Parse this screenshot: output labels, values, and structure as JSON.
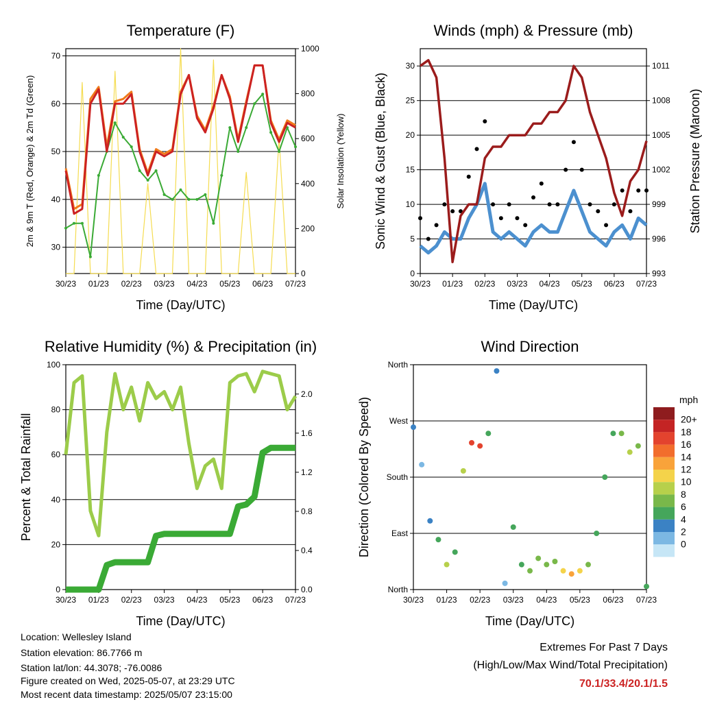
{
  "colors": {
    "temp_2m": "#cc2222",
    "temp_9m": "#f07a1a",
    "dewpoint": "#3aaa35",
    "solar": "#f5dc50",
    "wind": "#4c90cf",
    "gust": "#000000",
    "pressure": "#9b1c1c",
    "rh": "#9ccc4a",
    "rain": "#3aaa35",
    "extremes": "#cc2222"
  },
  "x_ticks": [
    "30/23",
    "01/23",
    "02/23",
    "03/23",
    "04/23",
    "05/23",
    "06/23",
    "07/23"
  ],
  "chart_data": [
    {
      "id": "temperature",
      "type": "line",
      "title": "Temperature (F)",
      "xlabel": "Time (Day/UTC)",
      "ylabel": "2m & 9m T (Red, Orange) & 2m Td (Green)",
      "y2label": "Solar Insolation (Yellow)",
      "ylim": [
        24.5,
        71.5
      ],
      "y2lim": [
        0,
        1000
      ],
      "yticks": [
        30,
        40,
        50,
        60,
        70
      ],
      "y2ticks": [
        0,
        200,
        400,
        600,
        800,
        1000
      ],
      "grid": true,
      "x": [
        0,
        0.25,
        0.5,
        0.75,
        1,
        1.25,
        1.5,
        1.75,
        2,
        2.25,
        2.5,
        2.75,
        3,
        3.25,
        3.5,
        3.75,
        4,
        4.25,
        4.5,
        4.75,
        5,
        5.25,
        5.5,
        5.75,
        6,
        6.25,
        6.5,
        6.75,
        7
      ],
      "series": [
        {
          "key": "temp_2m",
          "values": [
            46,
            37,
            38,
            60,
            63,
            50,
            60,
            60,
            62,
            50,
            45,
            50,
            49,
            50,
            62,
            66,
            57,
            54,
            59,
            66,
            61,
            52,
            60,
            68,
            68,
            56,
            52,
            56,
            55
          ]
        },
        {
          "key": "temp_9m",
          "values": [
            46.5,
            38,
            39,
            61,
            63.5,
            51,
            60.5,
            61,
            62.5,
            50.5,
            45.5,
            50.5,
            49.5,
            50.5,
            62.5,
            66,
            57.5,
            54.5,
            59.5,
            66,
            61.5,
            52.5,
            60.5,
            68,
            68,
            56.5,
            52.5,
            56.5,
            55.5
          ]
        },
        {
          "key": "dewpoint",
          "values": [
            34,
            35,
            35,
            28,
            45,
            50,
            56,
            53,
            51,
            46,
            44,
            46,
            41,
            40,
            42,
            40,
            40,
            41,
            35,
            45,
            55,
            50,
            55,
            60,
            62,
            54,
            50,
            55,
            51
          ]
        },
        {
          "key": "solar",
          "axis": "y2",
          "values": [
            0,
            0,
            850,
            0,
            0,
            0,
            900,
            0,
            0,
            0,
            400,
            0,
            0,
            0,
            1000,
            0,
            0,
            0,
            950,
            0,
            0,
            0,
            450,
            0,
            0,
            0,
            600,
            0,
            0
          ]
        }
      ]
    },
    {
      "id": "winds",
      "type": "scatter",
      "title": "Winds (mph) & Pressure (mb)",
      "xlabel": "Time (Day/UTC)",
      "ylabel": "Sonic Wind & Gust (Blue, Black)",
      "y2label": "Station Pressure (Maroon)",
      "ylim": [
        0,
        32.5
      ],
      "y2lim": [
        993,
        1012.5
      ],
      "yticks": [
        0,
        5,
        10,
        15,
        20,
        25,
        30
      ],
      "y2ticks": [
        993,
        996,
        999,
        1002,
        1005,
        1008,
        1011
      ],
      "grid": true,
      "x": [
        0,
        0.25,
        0.5,
        0.75,
        1,
        1.25,
        1.5,
        1.75,
        2,
        2.25,
        2.5,
        2.75,
        3,
        3.25,
        3.5,
        3.75,
        4,
        4.25,
        4.5,
        4.75,
        5,
        5.25,
        5.5,
        5.75,
        6,
        6.25,
        6.5,
        6.75,
        7
      ],
      "series": [
        {
          "key": "wind",
          "values": [
            4,
            3,
            4,
            6,
            5,
            5,
            8,
            10,
            13,
            6,
            5,
            6,
            5,
            4,
            6,
            7,
            6,
            6,
            9,
            12,
            9,
            6,
            5,
            4,
            6,
            7,
            5,
            8,
            7
          ]
        },
        {
          "key": "gust",
          "values": [
            8,
            5,
            7,
            10,
            9,
            9,
            14,
            18,
            22,
            10,
            8,
            10,
            8,
            7,
            11,
            13,
            10,
            10,
            15,
            19,
            15,
            10,
            9,
            7,
            10,
            12,
            9,
            12,
            12
          ]
        },
        {
          "key": "pressure",
          "axis": "y2",
          "values": [
            1011,
            1011.5,
            1010,
            1003,
            994,
            998,
            999,
            999,
            1003,
            1004,
            1004,
            1005,
            1005,
            1005,
            1006,
            1006,
            1007,
            1007,
            1008,
            1011,
            1010,
            1007,
            1005,
            1003,
            1000,
            998,
            1001,
            1002,
            1004.5
          ]
        }
      ]
    },
    {
      "id": "humidity",
      "type": "line",
      "title": "Relative Humidity (%) & Precipitation (in)",
      "xlabel": "Time (Day/UTC)",
      "ylabel": "Percent & Total Rainfall",
      "ylim": [
        0,
        100
      ],
      "y2lim": [
        0,
        2.3
      ],
      "yticks": [
        0,
        20,
        40,
        60,
        80,
        100
      ],
      "y2ticks": [
        0.0,
        0.4,
        0.8,
        1.2,
        1.6,
        2.0
      ],
      "y2tick_labels": [
        "0.0",
        "0.4",
        "0.8",
        "1.2",
        "1.6",
        "2.0"
      ],
      "grid": true,
      "x": [
        0,
        0.25,
        0.5,
        0.75,
        1,
        1.25,
        1.5,
        1.75,
        2,
        2.25,
        2.5,
        2.75,
        3,
        3.25,
        3.5,
        3.75,
        4,
        4.25,
        4.5,
        4.75,
        5,
        5.25,
        5.5,
        5.75,
        6,
        6.25,
        6.5,
        6.75,
        7
      ],
      "series": [
        {
          "key": "rh",
          "values": [
            60,
            92,
            95,
            35,
            24,
            70,
            96,
            80,
            90,
            75,
            92,
            85,
            88,
            80,
            90,
            65,
            45,
            55,
            58,
            45,
            92,
            95,
            96,
            88,
            97,
            96,
            95,
            80,
            86
          ]
        },
        {
          "key": "rain",
          "axis": "y2",
          "values": [
            0,
            0,
            0,
            0,
            0,
            0.25,
            0.28,
            0.28,
            0.28,
            0.28,
            0.28,
            0.55,
            0.57,
            0.57,
            0.57,
            0.57,
            0.57,
            0.57,
            0.57,
            0.57,
            0.57,
            0.85,
            0.87,
            0.95,
            1.4,
            1.45,
            1.45,
            1.45,
            1.45
          ]
        }
      ]
    },
    {
      "id": "direction",
      "type": "scatter",
      "title": "Wind Direction",
      "xlabel": "Time (Day/UTC)",
      "ylabel": "Direction (Colored By Speed)",
      "ylim": [
        0,
        360
      ],
      "yticks": [
        0,
        90,
        180,
        270,
        360
      ],
      "ytick_labels": [
        "North",
        "East",
        "South",
        "West",
        "North"
      ],
      "grid": true,
      "x": [
        0,
        0.25,
        0.5,
        0.75,
        1,
        1.25,
        1.5,
        1.75,
        2,
        2.25,
        2.5,
        2.75,
        3,
        3.25,
        3.5,
        3.75,
        4,
        4.25,
        4.5,
        4.75,
        5,
        5.25,
        5.5,
        5.75,
        6,
        6.25,
        6.5,
        6.75,
        7
      ],
      "values": [
        260,
        200,
        110,
        80,
        40,
        60,
        190,
        235,
        230,
        250,
        350,
        10,
        100,
        40,
        30,
        50,
        40,
        45,
        30,
        25,
        30,
        40,
        90,
        180,
        250,
        250,
        220,
        230,
        5
      ],
      "speeds": [
        3,
        2,
        4,
        5,
        9,
        6,
        10,
        18,
        17,
        5,
        3,
        2,
        5,
        6,
        8,
        7,
        7,
        8,
        12,
        14,
        11,
        7,
        6,
        5,
        5,
        8,
        10,
        7,
        5
      ],
      "colorbar": {
        "unit": "mph",
        "labels": [
          "20+",
          "18",
          "16",
          "14",
          "12",
          "10",
          "8",
          "6",
          "4",
          "2",
          "0"
        ],
        "colors": [
          "#8e1c1e",
          "#c42424",
          "#e3432e",
          "#f26d2c",
          "#f9a33a",
          "#f4d34a",
          "#b7d04b",
          "#79b84a",
          "#45a65b",
          "#3b82c4",
          "#7cb8e3",
          "#c6e6f6"
        ]
      }
    }
  ],
  "info": {
    "location": "Location: Wellesley Island",
    "elevation": "Station elevation: 86.7766 m",
    "latlon": "Station lat/lon: 44.3078; -76.0086",
    "created": "Figure created on Wed, 2025-05-07, at 23:29 UTC",
    "recent": "Most recent data timestamp: 2025/05/07 23:15:00"
  },
  "extremes": {
    "title": "Extremes For Past 7 Days",
    "subtitle": "(High/Low/Max Wind/Total Precipitation)",
    "values": "70.1/33.4/20.1/1.5"
  }
}
